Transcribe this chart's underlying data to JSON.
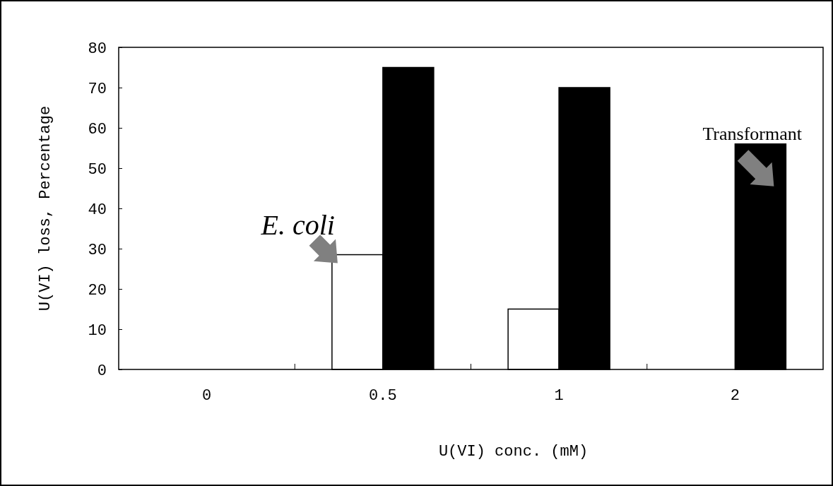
{
  "chart_data": {
    "type": "bar",
    "xlabel": "U(VI) conc. (mM)",
    "ylabel": "U(VI) loss, Percentage",
    "categories": [
      "0",
      "0.5",
      "1",
      "2"
    ],
    "series": [
      {
        "name": "E. coli",
        "color": "#ffffff",
        "values": [
          0,
          28.5,
          15,
          0
        ]
      },
      {
        "name": "Transformant",
        "color": "#000000",
        "values": [
          0,
          75,
          70,
          56
        ]
      }
    ],
    "ylim": [
      0,
      80
    ],
    "yticks": [
      0,
      10,
      20,
      30,
      40,
      50,
      60,
      70,
      80
    ],
    "grid": false
  }
}
